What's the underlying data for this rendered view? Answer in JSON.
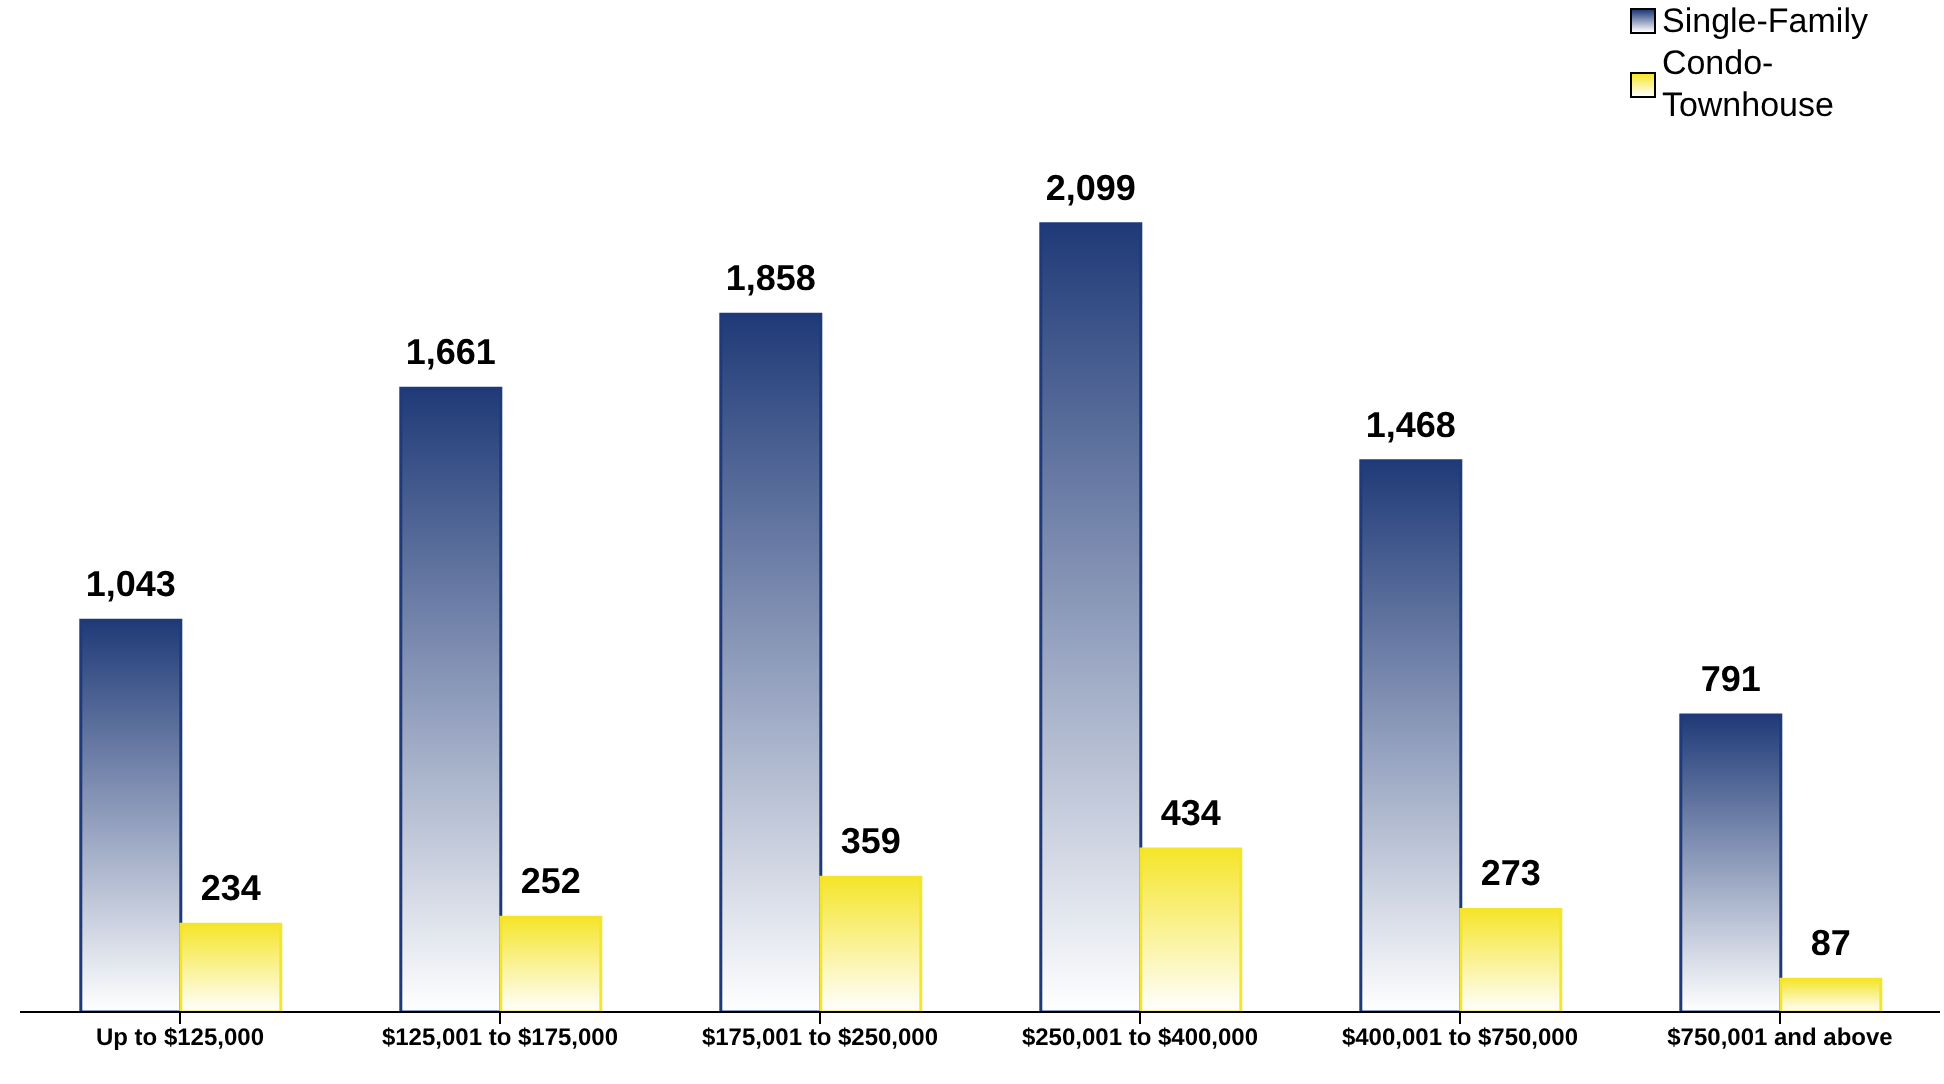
{
  "chart_data": {
    "type": "bar",
    "categories": [
      "Up to $125,000",
      "$125,001 to $175,000",
      "$175,001 to $250,000",
      "$250,001 to $400,000",
      "$400,001 to $750,000",
      "$750,001 and above"
    ],
    "series": [
      {
        "name": "Single-Family",
        "color": "#1f3a78",
        "values": [
          1043,
          1661,
          1858,
          2099,
          1468,
          791
        ],
        "value_labels": [
          "1,043",
          "1,661",
          "1,858",
          "2,099",
          "1,468",
          "791"
        ]
      },
      {
        "name": "Condo-Townhouse",
        "color": "#f5e52a",
        "values": [
          234,
          252,
          359,
          434,
          273,
          87
        ],
        "value_labels": [
          "234",
          "252",
          "359",
          "434",
          "273",
          "87"
        ]
      }
    ],
    "legend": "top right"
  }
}
